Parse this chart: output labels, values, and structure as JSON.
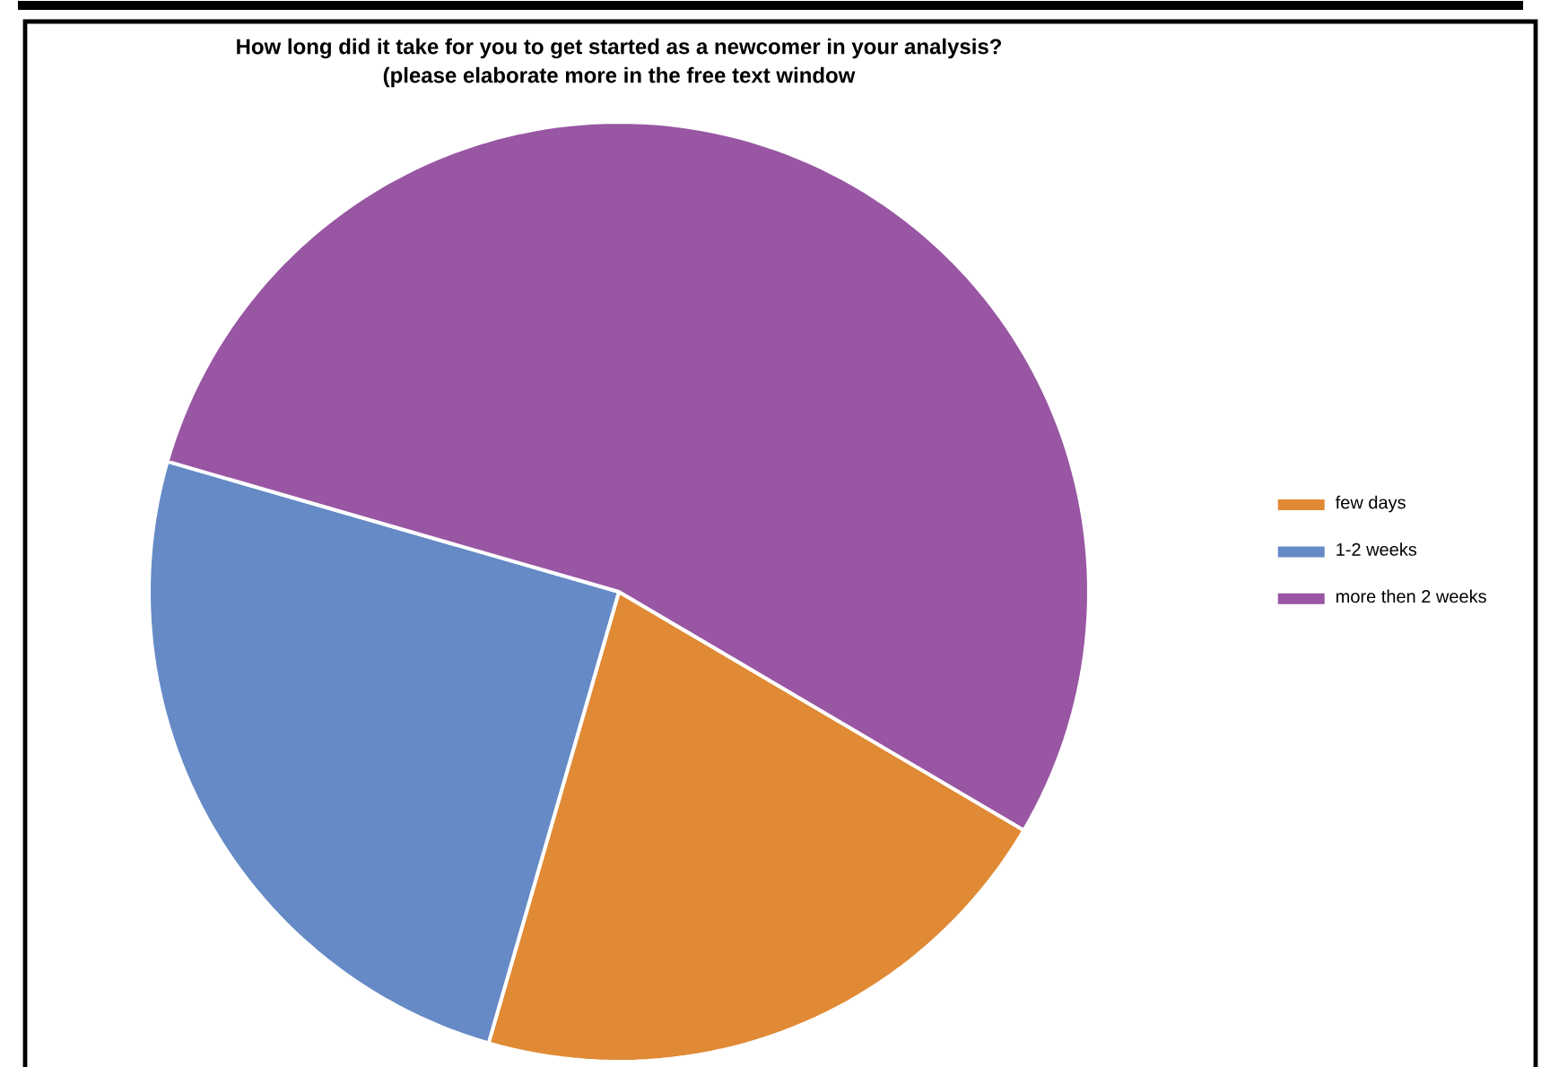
{
  "chart_data": {
    "type": "pie",
    "title": "How long did it take for you to get started as a newcomer in your analysis?",
    "subtitle": "(please elaborate more in the free text window",
    "categories": [
      "few days",
      "1-2 weeks",
      "more then 2 weeks"
    ],
    "values": [
      21,
      25,
      54
    ],
    "colors": [
      "#e08a35",
      "#658ac6",
      "#9856a3"
    ],
    "legend": "right"
  }
}
